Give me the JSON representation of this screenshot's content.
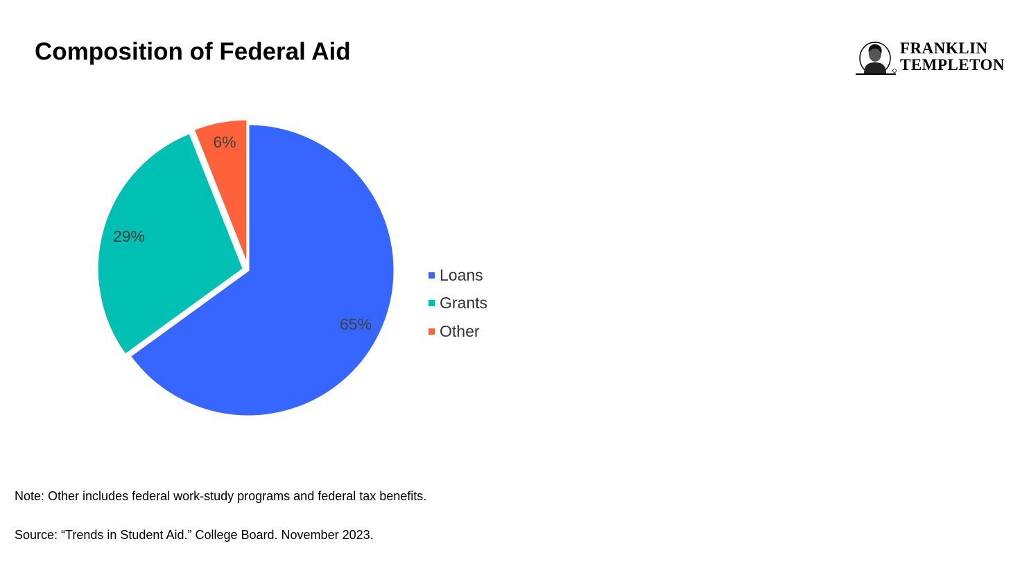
{
  "title": "Composition of Federal Aid",
  "logo": {
    "line1": "FRANKLIN",
    "line2": "TEMPLETON"
  },
  "chart_data": {
    "type": "pie",
    "title": "Composition of Federal Aid",
    "slices": [
      {
        "name": "Loans",
        "value": 65,
        "label": "65%",
        "color": "#3666FF"
      },
      {
        "name": "Grants",
        "value": 29,
        "label": "29%",
        "color": "#00BFB3"
      },
      {
        "name": "Other",
        "value": 6,
        "label": "6%",
        "color": "#FF623A"
      }
    ],
    "start_angle": "12 o'clock",
    "direction": "clockwise",
    "legend_position": "right"
  },
  "note": "Note:  Other includes federal work-study programs and federal tax benefits.",
  "source": "Source: “Trends in Student Aid.” College Board. November 2023."
}
